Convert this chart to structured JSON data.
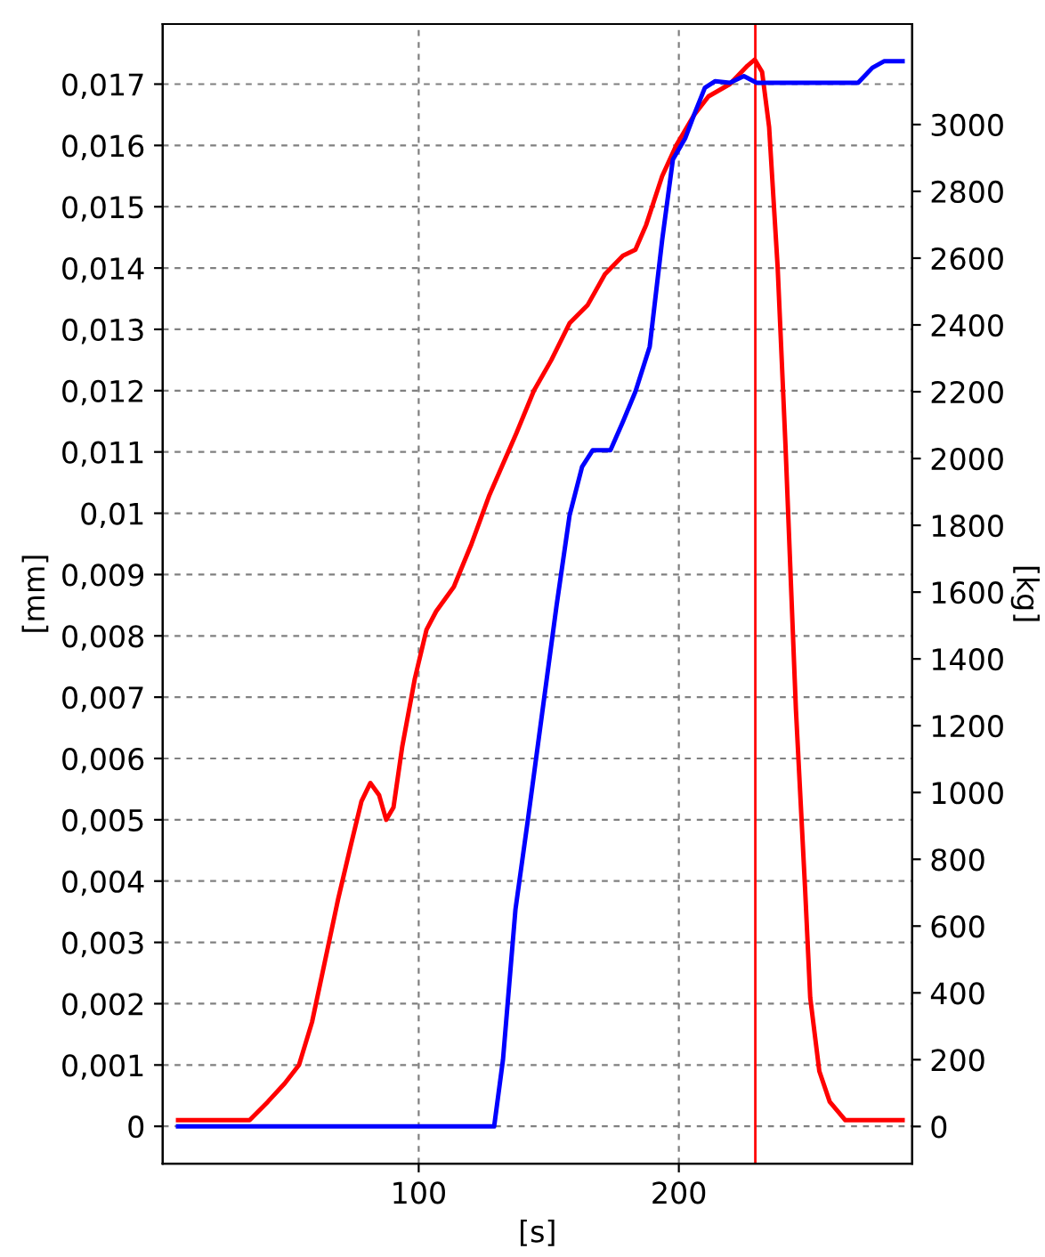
{
  "chart_data": {
    "type": "line",
    "xlabel": "[s]",
    "ylabel": "[mm]",
    "y2label": "[kg]",
    "xlim": [
      1.6,
      289.7
    ],
    "xticks": [
      100,
      200
    ],
    "ylim": [
      -0.00061,
      0.01798
    ],
    "yticks": [
      {
        "value": 0,
        "label": "0"
      },
      {
        "value": 0.001,
        "label": "0,001"
      },
      {
        "value": 0.002,
        "label": "0,002"
      },
      {
        "value": 0.003,
        "label": "0,003"
      },
      {
        "value": 0.004,
        "label": "0,004"
      },
      {
        "value": 0.005,
        "label": "0,005"
      },
      {
        "value": 0.006,
        "label": "0,006"
      },
      {
        "value": 0.007,
        "label": "0,007"
      },
      {
        "value": 0.008,
        "label": "0,008"
      },
      {
        "value": 0.009,
        "label": "0,009"
      },
      {
        "value": 0.01,
        "label": "0,01"
      },
      {
        "value": 0.011,
        "label": "0,011"
      },
      {
        "value": 0.012,
        "label": "0,012"
      },
      {
        "value": 0.013,
        "label": "0,013"
      },
      {
        "value": 0.014,
        "label": "0,014"
      },
      {
        "value": 0.015,
        "label": "0,015"
      },
      {
        "value": 0.016,
        "label": "0,016"
      },
      {
        "value": 0.017,
        "label": "0,017"
      }
    ],
    "y2lim": [
      -111.5,
      3301
    ],
    "y2ticks": [
      0,
      200,
      400,
      600,
      800,
      1000,
      1200,
      1400,
      1600,
      1800,
      2000,
      2200,
      2400,
      2600,
      2800,
      3000
    ],
    "grid": true,
    "line_style": "solid",
    "ref_lines": [
      {
        "axis": "x",
        "value": 229.4,
        "color": "#ff0000"
      }
    ],
    "series": [
      {
        "color": "#ff0000",
        "x": [
          7.5,
          28,
          35,
          42,
          48.5,
          54,
          59,
          64,
          69,
          74,
          78,
          81.4,
          84.8,
          87.5,
          90.3,
          93.7,
          98.5,
          103,
          106.7,
          113.5,
          120.3,
          127.2,
          137.5,
          144.3,
          151,
          158,
          165,
          171.6,
          178.5,
          183.3,
          187.4,
          193.6,
          199,
          205.9,
          211.4,
          219.6,
          226.4,
          229.2,
          232,
          234.7,
          238,
          241,
          245,
          248.5,
          250.5,
          254,
          258,
          264,
          274.6,
          286
        ],
        "values": [
          0.0001,
          0.0001,
          0.0001,
          0.0004,
          0.0007,
          0.001,
          0.0017,
          0.0027,
          0.0037,
          0.0046,
          0.0053,
          0.0056,
          0.0054,
          0.005,
          0.0052,
          0.0062,
          0.0073,
          0.0081,
          0.0084,
          0.0088,
          0.0095,
          0.0103,
          0.0113,
          0.012,
          0.0125,
          0.0131,
          0.0134,
          0.0139,
          0.0142,
          0.0143,
          0.0147,
          0.0155,
          0.016,
          0.0165,
          0.0168,
          0.017,
          0.0173,
          0.0174,
          0.0172,
          0.0163,
          0.014,
          0.0111,
          0.0068,
          0.0039,
          0.0021,
          0.0009,
          0.0004,
          0.0001,
          0.0001,
          0.0001
        ]
      },
      {
        "color": "#0000ff",
        "axis": "y2",
        "x": [
          7.5,
          129,
          132.4,
          137.2,
          142,
          147.5,
          153,
          158,
          162.8,
          166.9,
          173.7,
          178.5,
          183.3,
          188.8,
          193.6,
          197.7,
          202.5,
          205.9,
          210,
          214,
          219.6,
          225,
          229.9,
          233.3,
          268.9,
          274.4,
          279,
          286
        ],
        "values": [
          0,
          0,
          200,
          650,
          920,
          1240,
          1560,
          1830,
          1975,
          2025,
          2025,
          2110,
          2200,
          2335,
          2655,
          2895,
          2960,
          3030,
          3110,
          3130,
          3125,
          3145,
          3125,
          3125,
          3125,
          3170,
          3190,
          3190
        ]
      }
    ]
  }
}
